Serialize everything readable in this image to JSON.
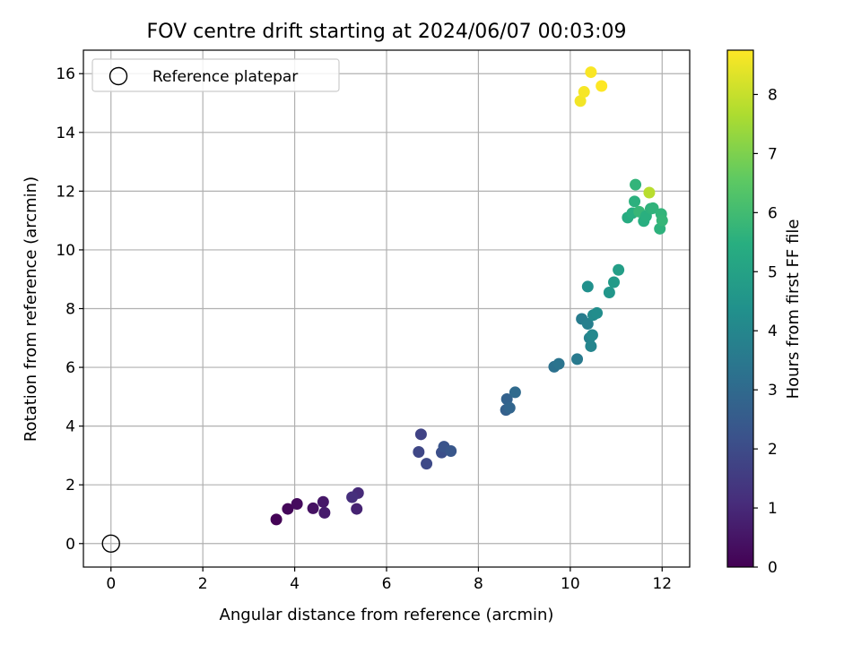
{
  "chart_data": {
    "type": "scatter",
    "title": "FOV centre drift starting at 2024/06/07 00:03:09",
    "xlabel": "Angular distance from reference (arcmin)",
    "ylabel": "Rotation from reference (arcmin)",
    "xlim": [
      -0.6,
      12.6
    ],
    "ylim": [
      -0.8,
      16.8
    ],
    "xticks": [
      0,
      2,
      4,
      6,
      8,
      10,
      12
    ],
    "yticks": [
      0,
      2,
      4,
      6,
      8,
      10,
      12,
      14,
      16
    ],
    "grid": true,
    "legend": {
      "position": "top-left",
      "entries": [
        "Reference platepar"
      ]
    },
    "reference_point": {
      "x": 0,
      "y": 0,
      "label": "Reference platepar"
    },
    "colorbar": {
      "label": "Hours from first FF file",
      "colormap": "viridis",
      "range": [
        0,
        8.75
      ],
      "ticks": [
        0,
        1,
        2,
        3,
        4,
        5,
        6,
        7,
        8
      ]
    },
    "series": [
      {
        "x": [
          3.6,
          3.85,
          4.05,
          4.4,
          4.62,
          4.65,
          5.35,
          5.38,
          5.25,
          6.75,
          6.7,
          6.87,
          7.2,
          7.25,
          7.4,
          8.6,
          8.62,
          8.68,
          8.8,
          9.65,
          9.75,
          10.15,
          10.25,
          10.38,
          10.42,
          10.45,
          10.48,
          10.5,
          10.58,
          10.38,
          10.85,
          10.95,
          11.05,
          11.25,
          11.35,
          11.4,
          11.42,
          11.5,
          11.6,
          11.65,
          11.75,
          11.8,
          11.95,
          11.98,
          12.0,
          11.72,
          10.22,
          10.3,
          10.45,
          10.68
        ],
        "y": [
          0.82,
          1.18,
          1.35,
          1.2,
          1.42,
          1.05,
          1.18,
          1.72,
          1.58,
          3.72,
          3.12,
          2.72,
          3.1,
          3.3,
          3.15,
          4.55,
          4.92,
          4.62,
          5.15,
          6.02,
          6.12,
          6.28,
          7.65,
          7.48,
          7.0,
          6.72,
          7.1,
          7.78,
          7.85,
          8.75,
          8.55,
          8.9,
          9.32,
          11.1,
          11.25,
          11.65,
          12.22,
          11.3,
          10.98,
          11.15,
          11.4,
          11.42,
          10.72,
          11.22,
          11.0,
          11.95,
          15.07,
          15.38,
          16.05,
          15.58
        ],
        "c": [
          0.05,
          0.15,
          0.25,
          0.4,
          0.55,
          0.65,
          0.85,
          1.05,
          1.15,
          1.75,
          1.85,
          1.95,
          2.1,
          2.25,
          2.35,
          2.65,
          2.75,
          2.85,
          3.0,
          3.25,
          3.35,
          3.55,
          3.65,
          3.75,
          3.85,
          3.95,
          4.05,
          4.15,
          4.25,
          4.35,
          4.55,
          4.7,
          4.85,
          5.35,
          5.45,
          5.55,
          5.7,
          5.8,
          5.45,
          5.5,
          5.6,
          5.65,
          5.6,
          5.7,
          5.75,
          7.8,
          8.6,
          8.65,
          8.7,
          8.75
        ]
      }
    ]
  }
}
